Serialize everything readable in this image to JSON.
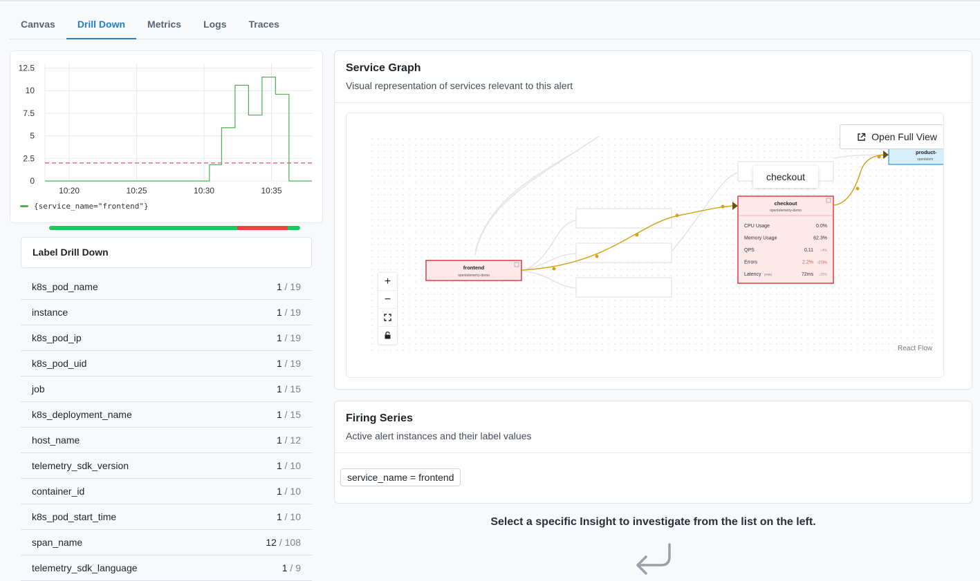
{
  "tabs": [
    {
      "label": "Canvas",
      "active": false
    },
    {
      "label": "Drill Down",
      "active": true
    },
    {
      "label": "Metrics",
      "active": false
    },
    {
      "label": "Logs",
      "active": false
    },
    {
      "label": "Traces",
      "active": false
    }
  ],
  "chart_data": {
    "type": "line",
    "title": "",
    "xlabel": "",
    "ylabel": "",
    "x_ticks": [
      "10:20",
      "10:25",
      "10:30",
      "10:35"
    ],
    "y_ticks": [
      "0",
      "2.5",
      "5",
      "7.5",
      "10",
      "12.5"
    ],
    "ylim": [
      0,
      13
    ],
    "xlim_minutes": [
      18.2,
      38.0
    ],
    "threshold": 2.0,
    "series": [
      {
        "name": "{service_name=\"frontend\"}",
        "color": "#4caf50",
        "step": true,
        "x_minutes": [
          18.2,
          30.4,
          31.3,
          32.3,
          33.3,
          34.3,
          35.3,
          36.3,
          37.3,
          38.0
        ],
        "values": [
          0,
          1.8,
          5.9,
          10.6,
          7.3,
          11.5,
          9.6,
          0,
          0,
          0
        ]
      }
    ]
  },
  "status_bar": [
    {
      "fraction": 0.75,
      "color": "#22c55e"
    },
    {
      "fraction": 0.2,
      "color": "#ef4444"
    },
    {
      "fraction": 0.05,
      "color": "#22c55e"
    }
  ],
  "drill_down": {
    "title": "Label Drill Down",
    "rows": [
      {
        "label": "k8s_pod_name",
        "count": "1",
        "total": "19"
      },
      {
        "label": "instance",
        "count": "1",
        "total": "19"
      },
      {
        "label": "k8s_pod_ip",
        "count": "1",
        "total": "19"
      },
      {
        "label": "k8s_pod_uid",
        "count": "1",
        "total": "19"
      },
      {
        "label": "job",
        "count": "1",
        "total": "15"
      },
      {
        "label": "k8s_deployment_name",
        "count": "1",
        "total": "15"
      },
      {
        "label": "host_name",
        "count": "1",
        "total": "12"
      },
      {
        "label": "telemetry_sdk_version",
        "count": "1",
        "total": "10"
      },
      {
        "label": "container_id",
        "count": "1",
        "total": "10"
      },
      {
        "label": "k8s_pod_start_time",
        "count": "1",
        "total": "10"
      },
      {
        "label": "span_name",
        "count": "12",
        "total": "108"
      },
      {
        "label": "telemetry_sdk_language",
        "count": "1",
        "total": "9"
      }
    ]
  },
  "service_graph": {
    "title": "Service Graph",
    "subtitle": "Visual representation of services relevant to this alert",
    "open_full_view": "Open Full View",
    "tooltip": "checkout",
    "attribution": "React Flow",
    "nodes": {
      "frontend": {
        "name": "frontend",
        "namespace": "opentelemetry-demo"
      },
      "checkout": {
        "name": "checkout",
        "namespace": "opentelemetry-demo",
        "metrics": [
          {
            "label": "CPU Usage",
            "value": "0.0%",
            "delta": ""
          },
          {
            "label": "Memory Usage",
            "value": "62.3%",
            "delta": ""
          },
          {
            "label": "QPS",
            "value": "0.11",
            "delta": "↓4%"
          },
          {
            "label": "Errors",
            "value": "2.2%",
            "delta": "↑273%"
          },
          {
            "label": "Latency",
            "sub": "(P95)",
            "value": "72ms",
            "delta": "↓25%"
          }
        ]
      },
      "product": {
        "name": "product-",
        "namespace": "opentelem"
      }
    }
  },
  "firing_series": {
    "title": "Firing Series",
    "subtitle": "Active alert instances and their label values",
    "chip": "service_name = frontend"
  },
  "hint": "Select a specific Insight to investigate from the list on the left."
}
